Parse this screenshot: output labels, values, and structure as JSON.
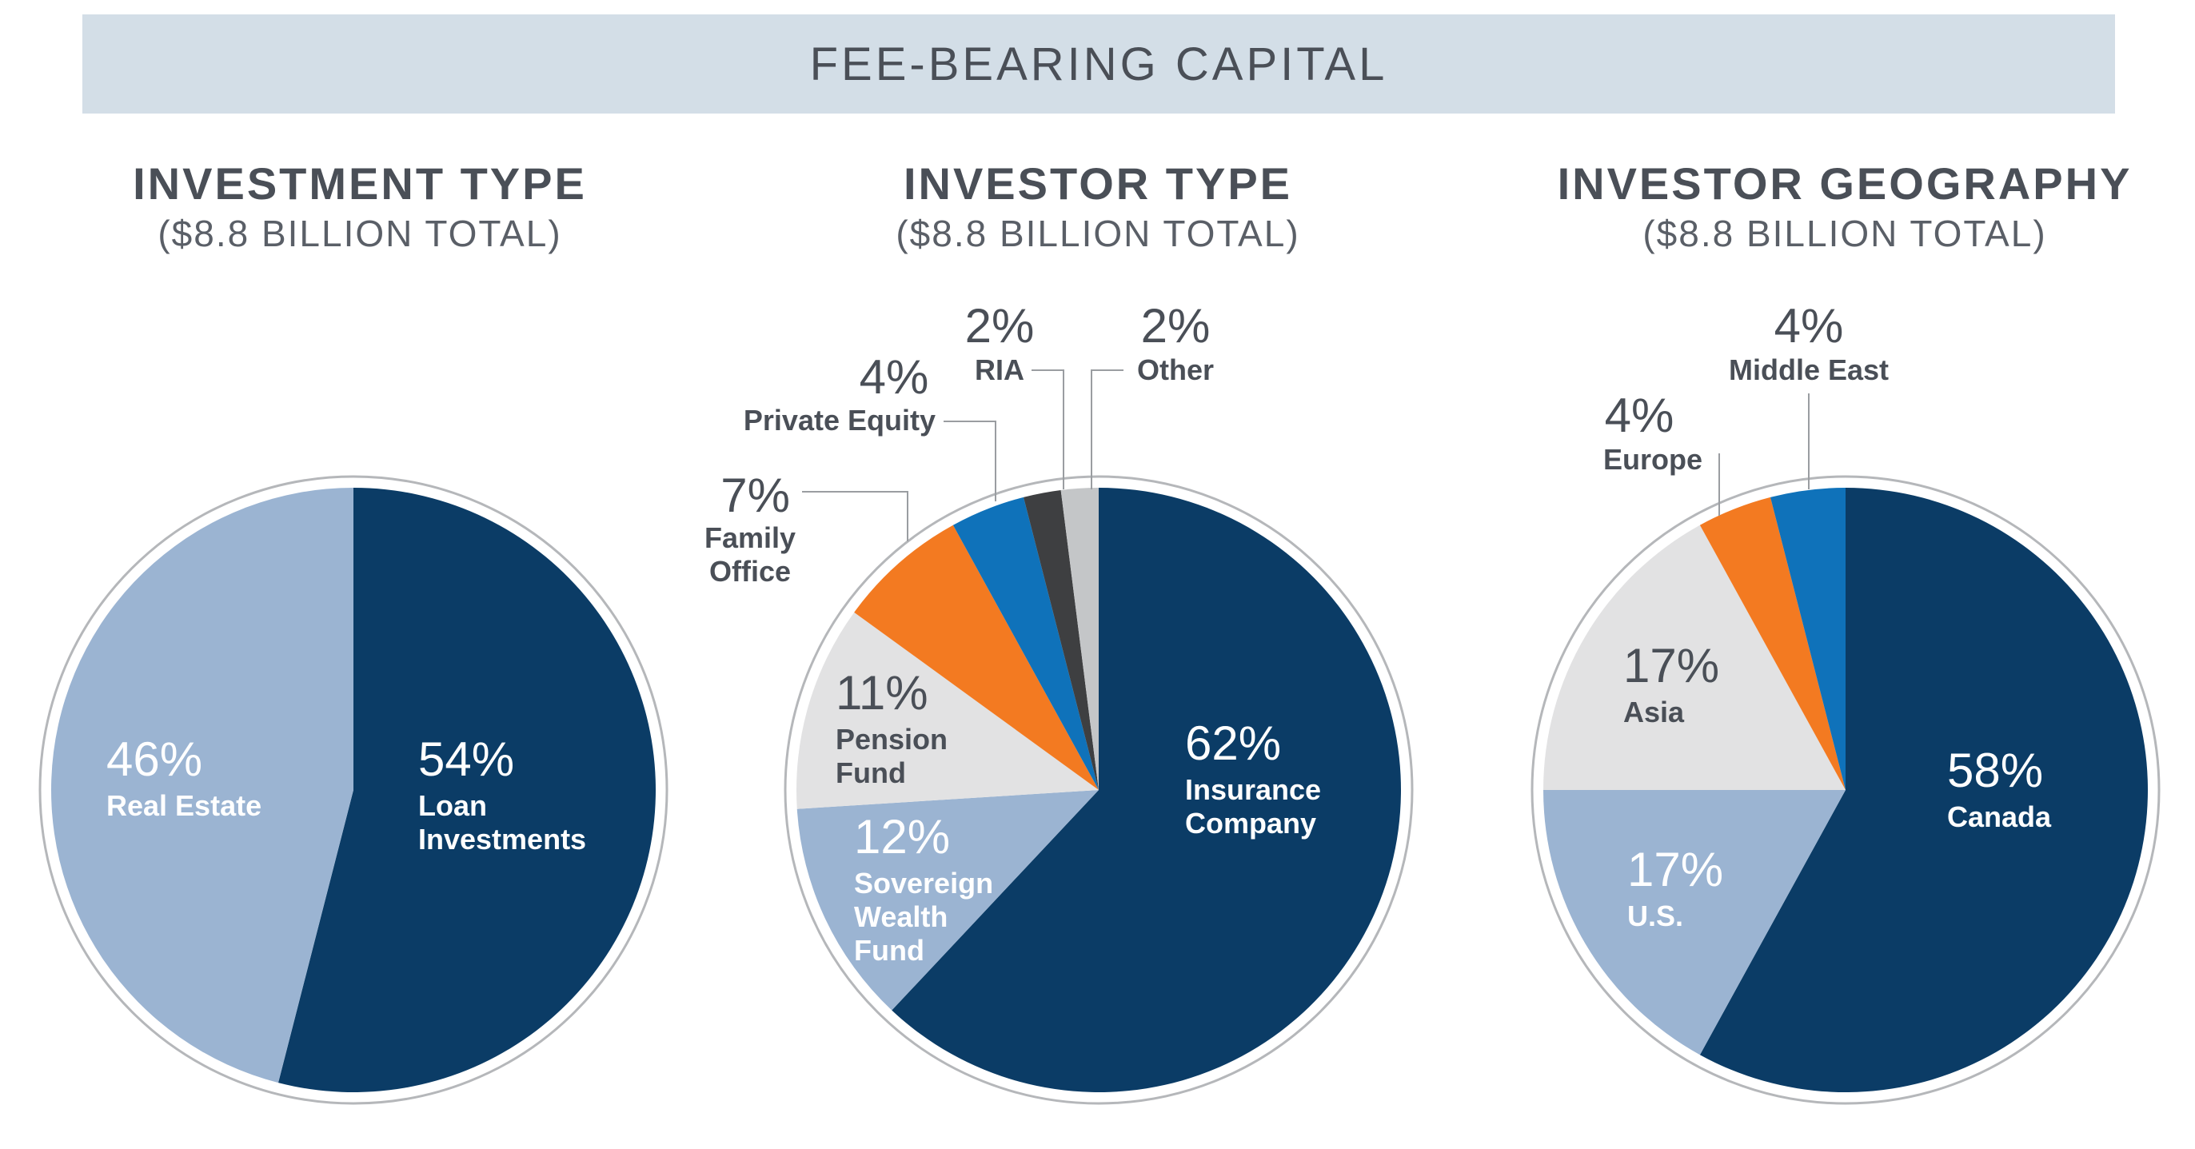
{
  "header": {
    "title": "FEE-BEARING CAPITAL"
  },
  "colors": {
    "navy": "#0b3c66",
    "light_blue": "#9bb4d2",
    "light_gray": "#e2e2e3",
    "orange": "#f37a21",
    "blue": "#0f72ba",
    "dark_gray": "#3e3f41",
    "silver": "#c4c6c8",
    "outline": "#b5b7ba",
    "text_dark": "#4a4f57"
  },
  "chart_data": [
    {
      "type": "pie",
      "title": "INVESTMENT TYPE",
      "subtitle": "($8.8 BILLION TOTAL)",
      "slices": [
        {
          "label": "Loan Investments",
          "pct_label": "54%",
          "value": 54,
          "color": "#0b3c66"
        },
        {
          "label": "Real Estate",
          "pct_label": "46%",
          "value": 46,
          "color": "#9bb4d2"
        }
      ]
    },
    {
      "type": "pie",
      "title": "INVESTOR TYPE",
      "subtitle": "($8.8 BILLION TOTAL)",
      "slices": [
        {
          "label": "Insurance Company",
          "pct_label": "62%",
          "value": 62,
          "color": "#0b3c66"
        },
        {
          "label": "Sovereign Wealth Fund",
          "pct_label": "12%",
          "value": 12,
          "color": "#9bb4d2"
        },
        {
          "label": "Pension Fund",
          "pct_label": "11%",
          "value": 11,
          "color": "#e2e2e3"
        },
        {
          "label": "Family Office",
          "pct_label": "7%",
          "value": 7,
          "color": "#f37a21"
        },
        {
          "label": "Private Equity",
          "pct_label": "4%",
          "value": 4,
          "color": "#0f72ba"
        },
        {
          "label": "RIA",
          "pct_label": "2%",
          "value": 2,
          "color": "#3e3f41"
        },
        {
          "label": "Other",
          "pct_label": "2%",
          "value": 2,
          "color": "#c4c6c8"
        }
      ]
    },
    {
      "type": "pie",
      "title": "INVESTOR GEOGRAPHY",
      "subtitle": "($8.8 BILLION TOTAL)",
      "slices": [
        {
          "label": "Canada",
          "pct_label": "58%",
          "value": 58,
          "color": "#0b3c66"
        },
        {
          "label": "U.S.",
          "pct_label": "17%",
          "value": 17,
          "color": "#9bb4d2"
        },
        {
          "label": "Asia",
          "pct_label": "17%",
          "value": 17,
          "color": "#e2e2e3"
        },
        {
          "label": "Europe",
          "pct_label": "4%",
          "value": 4,
          "color": "#f37a21"
        },
        {
          "label": "Middle East",
          "pct_label": "4%",
          "value": 4,
          "color": "#0f72ba"
        }
      ]
    }
  ]
}
